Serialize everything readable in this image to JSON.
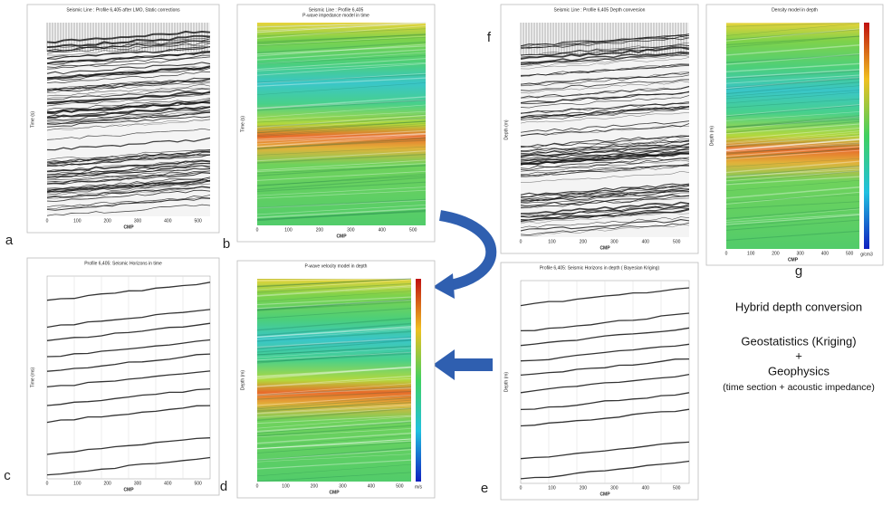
{
  "panels": [
    {
      "letter": "a",
      "title": "Seismic Line : Profile 6,405 after LMO, Static corrections",
      "x_label": "CMP",
      "y_label": "Time (s)"
    },
    {
      "letter": "b",
      "title": "Seismic Line : Profile 6,405",
      "subtitle": "P-wave impedance model in time",
      "x_label": "CMP",
      "y_label": "Time (s)"
    },
    {
      "letter": "c",
      "title": "Profile 6,405: Seismic Horizons in time",
      "x_label": "CMP",
      "y_label": "Time (ms)"
    },
    {
      "letter": "d",
      "title": "P-wave velocity model in depth",
      "x_label": "CMP",
      "y_label": "Depth (m)",
      "unit": "m/s"
    },
    {
      "letter": "f",
      "title": "Seismic Line : Profile 6,405 Depth conversion",
      "x_label": "CMP",
      "y_label": "Depth (m)"
    },
    {
      "letter": "g",
      "title": "Density model in depth",
      "x_label": "CMP",
      "y_label": "Depth (m)",
      "unit": "g/cm3"
    },
    {
      "letter": "e",
      "title": "Profile 6,405: Seismic Horizons in depth ( Bayesian Kriging)",
      "x_label": "CMP",
      "y_label": "Depth (m)"
    }
  ],
  "x_ticks": [
    "0",
    "100",
    "200",
    "300",
    "400",
    "500"
  ],
  "summary": {
    "title": "Hybrid depth conversion",
    "line1": "Geostatistics (Kriging)",
    "plus": "+",
    "line2": "Geophysics",
    "line3": "(time section + acoustic impedance)"
  }
}
